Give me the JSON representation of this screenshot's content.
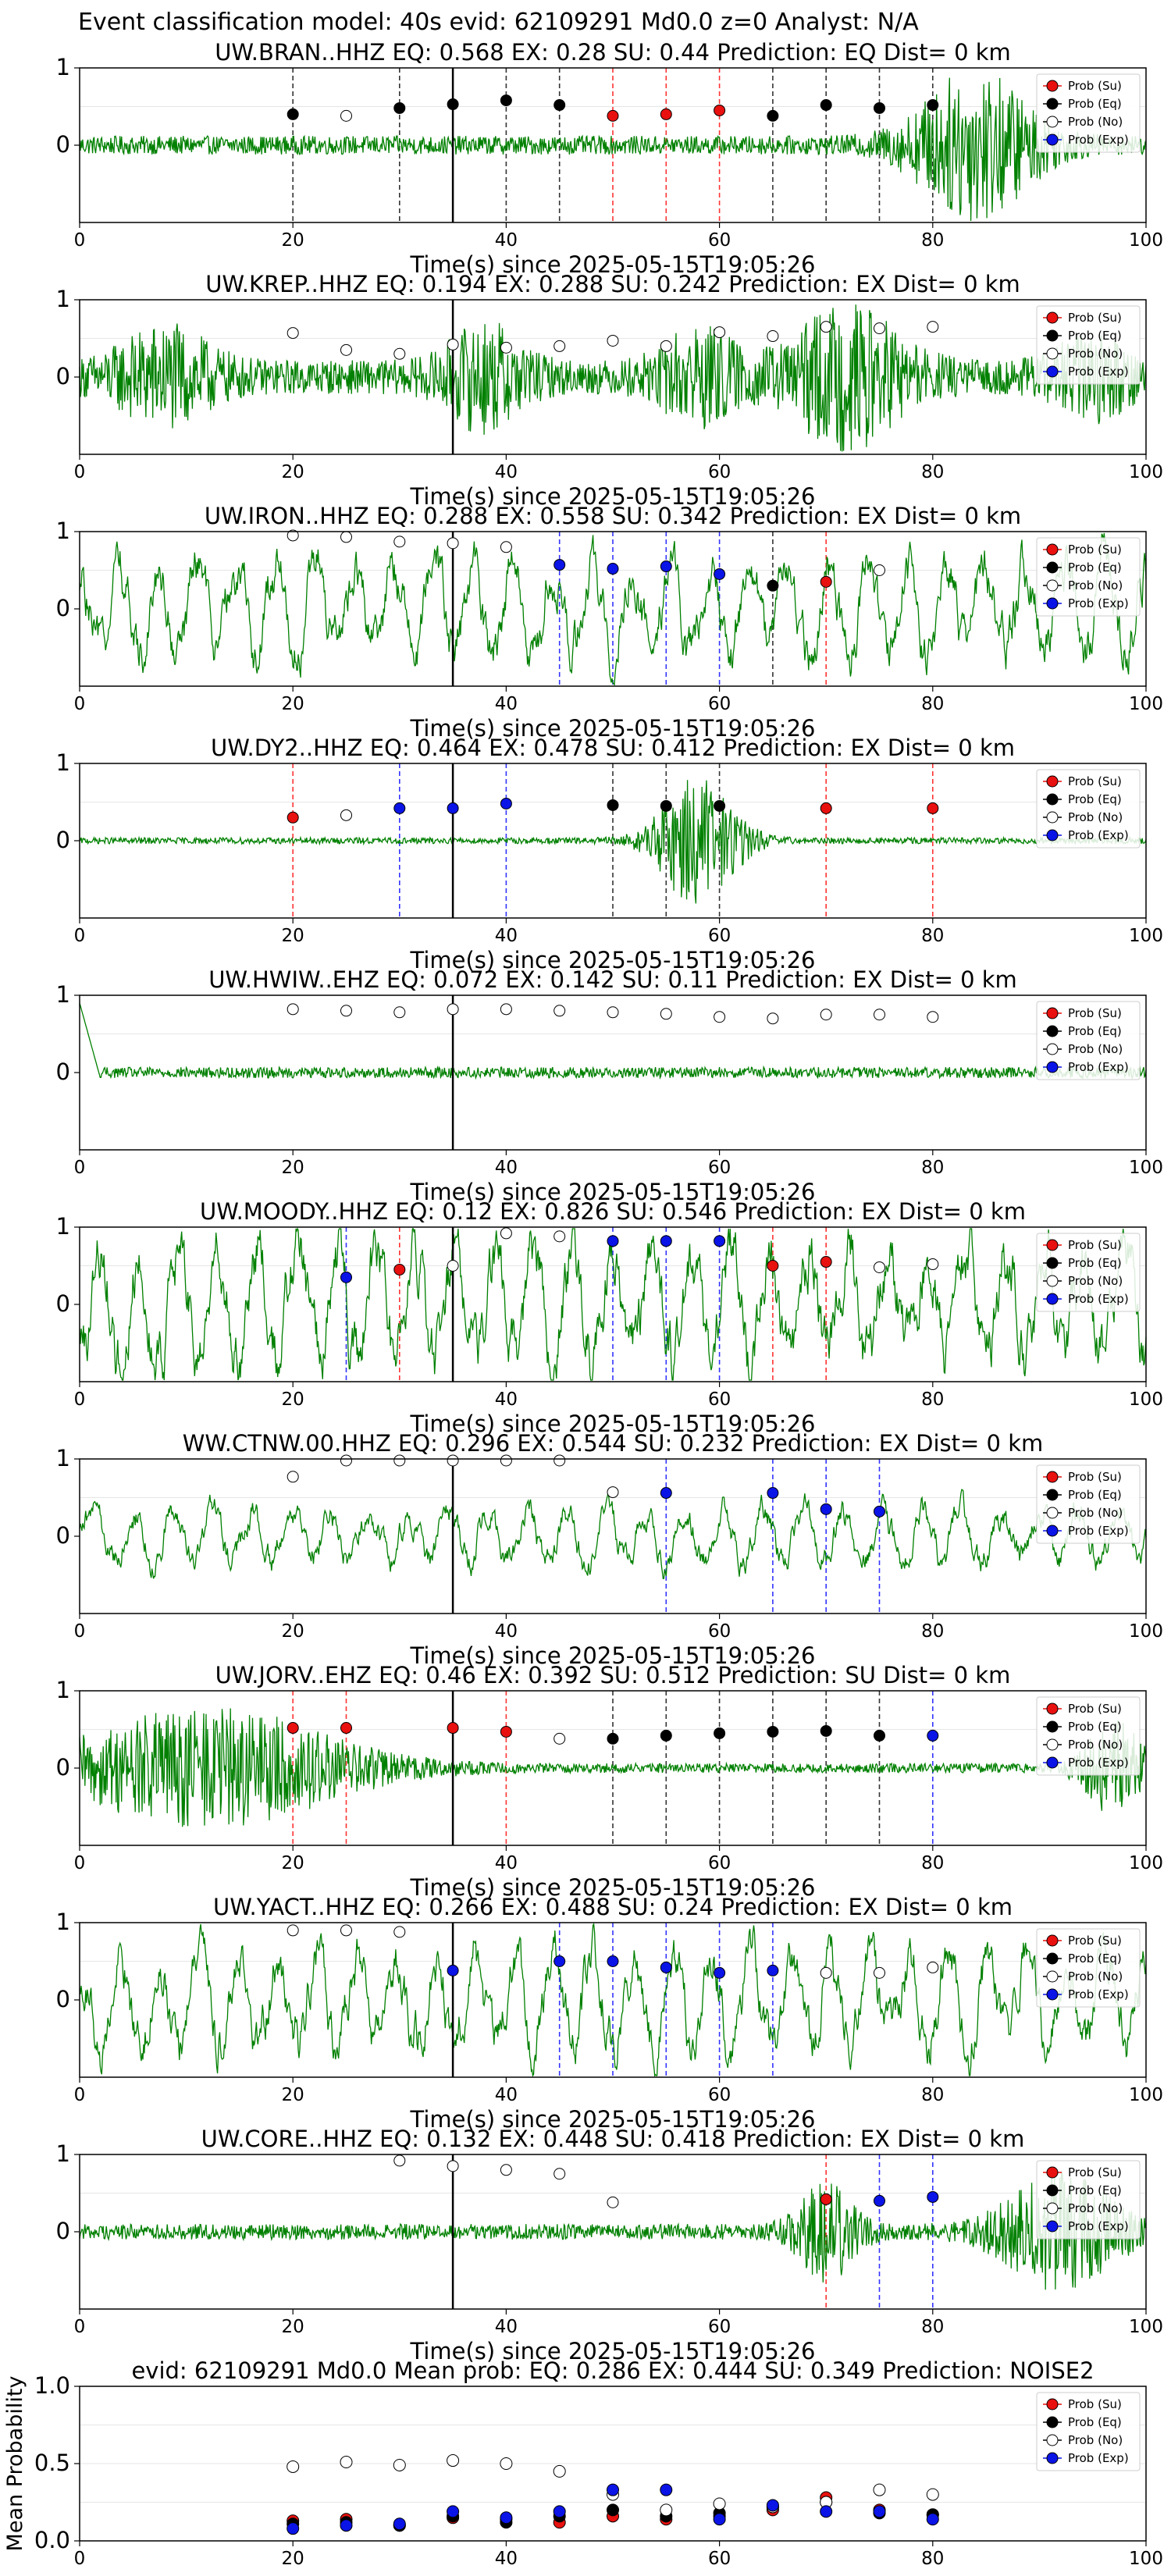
{
  "suptitle": "Event classification model: 40s evid: 62109291 Md0.0 z=0 Analyst: N/A",
  "legend": [
    "Prob (Su)",
    "Prob (Eq)",
    "Prob (No)",
    "Prob (Exp)"
  ],
  "colors": {
    "waveform": "#008000",
    "su": "#e8110f",
    "eq": "#000000",
    "no": "#ffffff",
    "exp": "#0a14e6",
    "vline_su": "#ff3333",
    "vline_eq": "#333333",
    "vline_exp": "#3333ff"
  },
  "chart_data": [
    {
      "type": "line",
      "title": "UW.BRAN..HHZ   EQ: 0.568  EX: 0.28  SU: 0.44   Prediction: EQ    Dist= 0 km",
      "xlabel": "Time(s) since 2025-05-15T19:05:26",
      "xlim": [
        0,
        100
      ],
      "ylim": [
        -1,
        1
      ],
      "xticks": [
        0,
        20,
        40,
        60,
        80,
        100
      ],
      "yticks": [
        0,
        1
      ],
      "pick_time": 35,
      "waveform": {
        "noise": 0.12,
        "bursts": [
          {
            "t": 84,
            "w": 6,
            "a": 0.9
          }
        ]
      },
      "windows": [
        {
          "x": 20,
          "cls": "eq",
          "p": 0.4
        },
        {
          "x": 25,
          "cls": "no",
          "p": 0.38
        },
        {
          "x": 30,
          "cls": "eq",
          "p": 0.48
        },
        {
          "x": 35,
          "cls": "eq",
          "p": 0.53
        },
        {
          "x": 40,
          "cls": "eq",
          "p": 0.58
        },
        {
          "x": 45,
          "cls": "eq",
          "p": 0.52
        },
        {
          "x": 50,
          "cls": "su",
          "p": 0.38
        },
        {
          "x": 55,
          "cls": "su",
          "p": 0.4
        },
        {
          "x": 60,
          "cls": "su",
          "p": 0.45
        },
        {
          "x": 65,
          "cls": "eq",
          "p": 0.38
        },
        {
          "x": 70,
          "cls": "eq",
          "p": 0.52
        },
        {
          "x": 75,
          "cls": "eq",
          "p": 0.48
        },
        {
          "x": 80,
          "cls": "eq",
          "p": 0.52
        }
      ]
    },
    {
      "type": "line",
      "title": "UW.KREP..HHZ   EQ: 0.194  EX: 0.288  SU: 0.242   Prediction: EX    Dist= 0 km",
      "xlabel": "Time(s) since 2025-05-15T19:05:26",
      "xlim": [
        0,
        100
      ],
      "ylim": [
        -1,
        1
      ],
      "xticks": [
        0,
        20,
        40,
        60,
        80,
        100
      ],
      "yticks": [
        0,
        1
      ],
      "pick_time": 35,
      "waveform": {
        "noise": 0.22,
        "bursts": [
          {
            "t": 8,
            "w": 5,
            "a": 0.5
          },
          {
            "t": 38,
            "w": 4,
            "a": 0.55
          },
          {
            "t": 58,
            "w": 4,
            "a": 0.5
          },
          {
            "t": 72,
            "w": 6,
            "a": 0.75
          },
          {
            "t": 95,
            "w": 4,
            "a": 0.4
          }
        ]
      },
      "windows": [
        {
          "x": 20,
          "cls": "no",
          "p": 0.57
        },
        {
          "x": 25,
          "cls": "no",
          "p": 0.35
        },
        {
          "x": 30,
          "cls": "no",
          "p": 0.3
        },
        {
          "x": 35,
          "cls": "no",
          "p": 0.42
        },
        {
          "x": 40,
          "cls": "no",
          "p": 0.38
        },
        {
          "x": 45,
          "cls": "no",
          "p": 0.4
        },
        {
          "x": 50,
          "cls": "no",
          "p": 0.47
        },
        {
          "x": 55,
          "cls": "no",
          "p": 0.4
        },
        {
          "x": 60,
          "cls": "no",
          "p": 0.58
        },
        {
          "x": 65,
          "cls": "no",
          "p": 0.53
        },
        {
          "x": 70,
          "cls": "no",
          "p": 0.65
        },
        {
          "x": 75,
          "cls": "no",
          "p": 0.63
        },
        {
          "x": 80,
          "cls": "no",
          "p": 0.65
        }
      ]
    },
    {
      "type": "line",
      "title": "UW.IRON..HHZ   EQ: 0.288  EX: 0.558  SU: 0.342   Prediction: EX    Dist= 0 km",
      "xlabel": "Time(s) since 2025-05-15T19:05:26",
      "xlim": [
        0,
        100
      ],
      "ylim": [
        -1,
        1
      ],
      "xticks": [
        0,
        20,
        40,
        60,
        80,
        100
      ],
      "yticks": [
        0,
        1
      ],
      "pick_time": 35,
      "waveform": {
        "noise": 0.15,
        "smooth": 0.35,
        "bursts": []
      },
      "windows": [
        {
          "x": 20,
          "cls": "no",
          "p": 0.95
        },
        {
          "x": 25,
          "cls": "no",
          "p": 0.93
        },
        {
          "x": 30,
          "cls": "no",
          "p": 0.87
        },
        {
          "x": 35,
          "cls": "no",
          "p": 0.85
        },
        {
          "x": 40,
          "cls": "no",
          "p": 0.8
        },
        {
          "x": 45,
          "cls": "exp",
          "p": 0.57
        },
        {
          "x": 50,
          "cls": "exp",
          "p": 0.52
        },
        {
          "x": 55,
          "cls": "exp",
          "p": 0.55
        },
        {
          "x": 60,
          "cls": "exp",
          "p": 0.45
        },
        {
          "x": 65,
          "cls": "eq",
          "p": 0.3
        },
        {
          "x": 70,
          "cls": "su",
          "p": 0.35
        },
        {
          "x": 75,
          "cls": "no",
          "p": 0.5
        }
      ]
    },
    {
      "type": "line",
      "title": "UW.DY2..HHZ   EQ: 0.464  EX: 0.478  SU: 0.412   Prediction: EX    Dist= 0 km",
      "xlabel": "Time(s) since 2025-05-15T19:05:26",
      "xlim": [
        0,
        100
      ],
      "ylim": [
        -1,
        1
      ],
      "xticks": [
        0,
        20,
        40,
        60,
        80,
        100
      ],
      "yticks": [
        0,
        1
      ],
      "pick_time": 35,
      "waveform": {
        "noise": 0.04,
        "bursts": [
          {
            "t": 58,
            "w": 4,
            "a": 0.85
          }
        ]
      },
      "windows": [
        {
          "x": 20,
          "cls": "su",
          "p": 0.3
        },
        {
          "x": 25,
          "cls": "no",
          "p": 0.33
        },
        {
          "x": 30,
          "cls": "exp",
          "p": 0.42
        },
        {
          "x": 35,
          "cls": "exp",
          "p": 0.42
        },
        {
          "x": 40,
          "cls": "exp",
          "p": 0.48
        },
        {
          "x": 50,
          "cls": "eq",
          "p": 0.46
        },
        {
          "x": 55,
          "cls": "eq",
          "p": 0.45
        },
        {
          "x": 60,
          "cls": "eq",
          "p": 0.45
        },
        {
          "x": 70,
          "cls": "su",
          "p": 0.42
        },
        {
          "x": 80,
          "cls": "su",
          "p": 0.42
        }
      ]
    },
    {
      "type": "line",
      "title": "UW.HWIW..EHZ   EQ: 0.072  EX: 0.142  SU: 0.11   Prediction: EX    Dist= 0 km",
      "xlabel": "Time(s) since 2025-05-15T19:05:26",
      "xlim": [
        0,
        100
      ],
      "ylim": [
        -1,
        1
      ],
      "xticks": [
        0,
        20,
        40,
        60,
        80,
        100
      ],
      "yticks": [
        0,
        1
      ],
      "pick_time": 35,
      "waveform": {
        "noise": 0.07,
        "bursts": [],
        "start_spike": true
      },
      "windows": [
        {
          "x": 20,
          "cls": "no",
          "p": 0.82
        },
        {
          "x": 25,
          "cls": "no",
          "p": 0.8
        },
        {
          "x": 30,
          "cls": "no",
          "p": 0.78
        },
        {
          "x": 35,
          "cls": "no",
          "p": 0.82
        },
        {
          "x": 40,
          "cls": "no",
          "p": 0.82
        },
        {
          "x": 45,
          "cls": "no",
          "p": 0.8
        },
        {
          "x": 50,
          "cls": "no",
          "p": 0.78
        },
        {
          "x": 55,
          "cls": "no",
          "p": 0.76
        },
        {
          "x": 60,
          "cls": "no",
          "p": 0.72
        },
        {
          "x": 65,
          "cls": "no",
          "p": 0.7
        },
        {
          "x": 70,
          "cls": "no",
          "p": 0.75
        },
        {
          "x": 75,
          "cls": "no",
          "p": 0.75
        },
        {
          "x": 80,
          "cls": "no",
          "p": 0.72
        }
      ]
    },
    {
      "type": "line",
      "title": "UW.MOODY..HHZ   EQ: 0.12  EX: 0.826  SU: 0.546   Prediction: EX    Dist= 0 km",
      "xlabel": "Time(s) since 2025-05-15T19:05:26",
      "xlim": [
        0,
        100
      ],
      "ylim": [
        -1,
        1
      ],
      "xticks": [
        0,
        20,
        40,
        60,
        80,
        100
      ],
      "yticks": [
        0,
        1
      ],
      "pick_time": 35,
      "waveform": {
        "noise": 0.2,
        "smooth": 0.45,
        "bursts": []
      },
      "windows": [
        {
          "x": 25,
          "cls": "exp",
          "p": 0.35
        },
        {
          "x": 30,
          "cls": "su",
          "p": 0.45
        },
        {
          "x": 35,
          "cls": "no",
          "p": 0.5
        },
        {
          "x": 40,
          "cls": "no",
          "p": 0.92
        },
        {
          "x": 45,
          "cls": "no",
          "p": 0.88
        },
        {
          "x": 50,
          "cls": "exp",
          "p": 0.82
        },
        {
          "x": 55,
          "cls": "exp",
          "p": 0.82
        },
        {
          "x": 60,
          "cls": "exp",
          "p": 0.82
        },
        {
          "x": 65,
          "cls": "su",
          "p": 0.5
        },
        {
          "x": 70,
          "cls": "su",
          "p": 0.55
        },
        {
          "x": 75,
          "cls": "no",
          "p": 0.48
        },
        {
          "x": 80,
          "cls": "no",
          "p": 0.52
        }
      ]
    },
    {
      "type": "line",
      "title": "WW.CTNW.00.HHZ   EQ: 0.296  EX: 0.544  SU: 0.232   Prediction: EX    Dist= 0 km",
      "xlabel": "Time(s) since 2025-05-15T19:05:26",
      "xlim": [
        0,
        100
      ],
      "ylim": [
        -1,
        1
      ],
      "xticks": [
        0,
        20,
        40,
        60,
        80,
        100
      ],
      "yticks": [
        0,
        1
      ],
      "pick_time": 35,
      "waveform": {
        "noise": 0.08,
        "smooth": 0.2,
        "bursts": [
          {
            "t": 74,
            "w": 6,
            "a": 0.7
          }
        ]
      },
      "windows": [
        {
          "x": 20,
          "cls": "no",
          "p": 0.77
        },
        {
          "x": 25,
          "cls": "no",
          "p": 0.98
        },
        {
          "x": 30,
          "cls": "no",
          "p": 0.98
        },
        {
          "x": 35,
          "cls": "no",
          "p": 0.98
        },
        {
          "x": 40,
          "cls": "no",
          "p": 0.98
        },
        {
          "x": 45,
          "cls": "no",
          "p": 0.98
        },
        {
          "x": 50,
          "cls": "no",
          "p": 0.57
        },
        {
          "x": 55,
          "cls": "exp",
          "p": 0.56
        },
        {
          "x": 65,
          "cls": "exp",
          "p": 0.56
        },
        {
          "x": 70,
          "cls": "exp",
          "p": 0.35
        },
        {
          "x": 75,
          "cls": "exp",
          "p": 0.32
        }
      ]
    },
    {
      "type": "line",
      "title": "UW.JORV..EHZ   EQ: 0.46  EX: 0.392  SU: 0.512   Prediction: SU    Dist= 0 km",
      "xlabel": "Time(s) since 2025-05-15T19:05:26",
      "xlim": [
        0,
        100
      ],
      "ylim": [
        -1,
        1
      ],
      "xticks": [
        0,
        20,
        40,
        60,
        80,
        100
      ],
      "yticks": [
        0,
        1
      ],
      "pick_time": 35,
      "waveform": {
        "noise": 0.06,
        "bursts": [
          {
            "t": 12,
            "w": 14,
            "a": 0.75
          },
          {
            "t": 97,
            "w": 3,
            "a": 0.6
          }
        ]
      },
      "windows": [
        {
          "x": 20,
          "cls": "su",
          "p": 0.52
        },
        {
          "x": 25,
          "cls": "su",
          "p": 0.52
        },
        {
          "x": 35,
          "cls": "su",
          "p": 0.52
        },
        {
          "x": 40,
          "cls": "su",
          "p": 0.47
        },
        {
          "x": 45,
          "cls": "no",
          "p": 0.38
        },
        {
          "x": 50,
          "cls": "eq",
          "p": 0.38
        },
        {
          "x": 55,
          "cls": "eq",
          "p": 0.42
        },
        {
          "x": 60,
          "cls": "eq",
          "p": 0.45
        },
        {
          "x": 65,
          "cls": "eq",
          "p": 0.47
        },
        {
          "x": 70,
          "cls": "eq",
          "p": 0.48
        },
        {
          "x": 75,
          "cls": "eq",
          "p": 0.42
        },
        {
          "x": 80,
          "cls": "exp",
          "p": 0.42
        }
      ]
    },
    {
      "type": "line",
      "title": "UW.YACT..HHZ   EQ: 0.266  EX: 0.488  SU: 0.24   Prediction: EX    Dist= 0 km",
      "xlabel": "Time(s) since 2025-05-15T19:05:26",
      "xlim": [
        0,
        100
      ],
      "ylim": [
        -1,
        1
      ],
      "xticks": [
        0,
        20,
        40,
        60,
        80,
        100
      ],
      "yticks": [
        0,
        1
      ],
      "pick_time": 35,
      "waveform": {
        "noise": 0.18,
        "smooth": 0.35,
        "bursts": []
      },
      "windows": [
        {
          "x": 20,
          "cls": "no",
          "p": 0.9
        },
        {
          "x": 25,
          "cls": "no",
          "p": 0.9
        },
        {
          "x": 30,
          "cls": "no",
          "p": 0.88
        },
        {
          "x": 35,
          "cls": "exp",
          "p": 0.38
        },
        {
          "x": 45,
          "cls": "exp",
          "p": 0.5
        },
        {
          "x": 50,
          "cls": "exp",
          "p": 0.5
        },
        {
          "x": 55,
          "cls": "exp",
          "p": 0.42
        },
        {
          "x": 60,
          "cls": "exp",
          "p": 0.35
        },
        {
          "x": 65,
          "cls": "exp",
          "p": 0.38
        },
        {
          "x": 70,
          "cls": "no",
          "p": 0.35
        },
        {
          "x": 75,
          "cls": "no",
          "p": 0.35
        },
        {
          "x": 80,
          "cls": "no",
          "p": 0.42
        }
      ]
    },
    {
      "type": "line",
      "title": "UW.CORE..HHZ   EQ: 0.132  EX: 0.448  SU: 0.418   Prediction: EX    Dist= 0 km",
      "xlabel": "Time(s) since 2025-05-15T19:05:26",
      "xlim": [
        0,
        100
      ],
      "ylim": [
        -1,
        1
      ],
      "xticks": [
        0,
        20,
        40,
        60,
        80,
        100
      ],
      "yticks": [
        0,
        1
      ],
      "pick_time": 35,
      "waveform": {
        "noise": 0.1,
        "bursts": [
          {
            "t": 70,
            "w": 3,
            "a": 0.6
          },
          {
            "t": 92,
            "w": 6,
            "a": 0.7
          }
        ]
      },
      "windows": [
        {
          "x": 30,
          "cls": "no",
          "p": 0.92
        },
        {
          "x": 35,
          "cls": "no",
          "p": 0.85
        },
        {
          "x": 40,
          "cls": "no",
          "p": 0.8
        },
        {
          "x": 45,
          "cls": "no",
          "p": 0.75
        },
        {
          "x": 50,
          "cls": "no",
          "p": 0.38
        },
        {
          "x": 70,
          "cls": "su",
          "p": 0.42
        },
        {
          "x": 75,
          "cls": "exp",
          "p": 0.4
        },
        {
          "x": 80,
          "cls": "exp",
          "p": 0.45
        }
      ]
    },
    {
      "type": "scatter",
      "title": "evid: 62109291   Md0.0   Mean prob:   EQ: 0.286  EX: 0.444  SU: 0.349   Prediction: NOISE2",
      "ylabel": "Mean Probability",
      "xlim": [
        0,
        100
      ],
      "ylim": [
        0,
        1
      ],
      "xticks": [
        0,
        20,
        40,
        60,
        80,
        100
      ],
      "yticks": [
        0.0,
        0.5,
        1.0
      ],
      "ytick_labels": [
        "0.0",
        "0.5",
        "1.0"
      ],
      "x": [
        20,
        25,
        30,
        35,
        40,
        45,
        50,
        55,
        60,
        65,
        70,
        75,
        80
      ],
      "series": [
        {
          "name": "Prob (Su)",
          "key": "su",
          "values": [
            0.13,
            0.14,
            0.1,
            0.15,
            0.14,
            0.12,
            0.16,
            0.14,
            0.16,
            0.2,
            0.28,
            0.2,
            0.17
          ]
        },
        {
          "name": "Prob (Eq)",
          "key": "eq",
          "values": [
            0.11,
            0.12,
            0.1,
            0.16,
            0.12,
            0.16,
            0.2,
            0.16,
            0.18,
            0.22,
            0.25,
            0.18,
            0.17
          ]
        },
        {
          "name": "Prob (No)",
          "key": "no",
          "values": [
            0.48,
            0.51,
            0.49,
            0.52,
            0.5,
            0.45,
            0.3,
            0.2,
            0.24,
            0.22,
            0.25,
            0.33,
            0.3
          ]
        },
        {
          "name": "Prob (Exp)",
          "key": "exp",
          "values": [
            0.08,
            0.1,
            0.11,
            0.19,
            0.15,
            0.19,
            0.33,
            0.33,
            0.14,
            0.23,
            0.19,
            0.19,
            0.14
          ]
        }
      ]
    }
  ]
}
